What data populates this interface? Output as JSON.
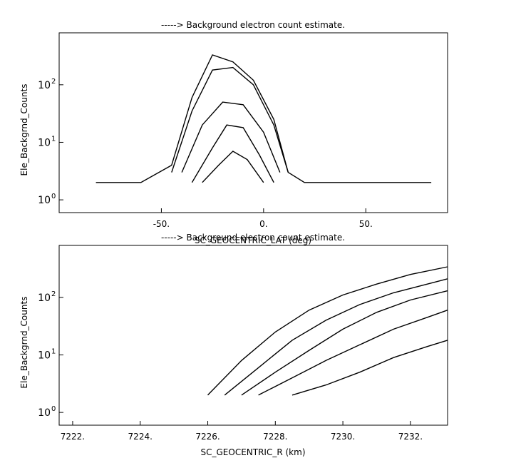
{
  "chart_data": [
    {
      "type": "line",
      "title": "-----> Background electron count estimate.",
      "xlabel": "SC_GEOCENTRIC_LAT (deg)",
      "ylabel": "Ele_Backgrnd_Counts",
      "xlim": [
        -100,
        90
      ],
      "ylim": [
        0.6,
        800
      ],
      "yscale": "log",
      "x_ticks": [
        -50,
        0,
        50
      ],
      "x_tick_labels": [
        "-50.",
        "0.",
        "50."
      ],
      "y_ticks": [
        1,
        10,
        100
      ],
      "y_tick_labels": [
        "10",
        "10",
        "10"
      ],
      "y_tick_exponents": [
        "0",
        "1",
        "2"
      ],
      "grid": false,
      "series": [
        {
          "x": [
            -82,
            -60,
            -45,
            -35,
            -25,
            -15,
            -5,
            5,
            12,
            20,
            40,
            60,
            82
          ],
          "values": [
            2,
            2,
            4,
            60,
            330,
            250,
            120,
            25,
            3,
            2,
            2,
            2,
            2
          ]
        },
        {
          "x": [
            -45,
            -35,
            -25,
            -15,
            -5,
            5,
            12
          ],
          "values": [
            3,
            35,
            180,
            200,
            100,
            20,
            3
          ]
        },
        {
          "x": [
            -40,
            -30,
            -20,
            -10,
            0,
            8
          ],
          "values": [
            3,
            20,
            50,
            45,
            15,
            3
          ]
        },
        {
          "x": [
            -35,
            -25,
            -18,
            -10,
            -2,
            5
          ],
          "values": [
            2,
            8,
            20,
            18,
            6,
            2
          ]
        },
        {
          "x": [
            -30,
            -22,
            -15,
            -8,
            0
          ],
          "values": [
            2,
            4,
            7,
            5,
            2
          ]
        }
      ]
    },
    {
      "type": "line",
      "title": "-----> Background electron count estimate.",
      "xlabel": "SC_GEOCENTRIC_R (km)",
      "ylabel": "Ele_Backgrnd_Counts",
      "xlim": [
        7221.6,
        7233.1
      ],
      "ylim": [
        0.6,
        800
      ],
      "yscale": "log",
      "x_ticks": [
        7222,
        7224,
        7226,
        7228,
        7230,
        7232
      ],
      "x_tick_labels": [
        "7222.",
        "7224.",
        "7226.",
        "7228.",
        "7230.",
        "7232."
      ],
      "y_ticks": [
        1,
        10,
        100
      ],
      "y_tick_labels": [
        "10",
        "10",
        "10"
      ],
      "y_tick_exponents": [
        "0",
        "1",
        "2"
      ],
      "grid": false,
      "series": [
        {
          "x": [
            7226,
            7227,
            7228,
            7229,
            7230,
            7231,
            7232,
            7233.1
          ],
          "values": [
            2,
            8,
            25,
            60,
            110,
            170,
            250,
            340
          ]
        },
        {
          "x": [
            7226.5,
            7227.5,
            7228.5,
            7229.5,
            7230.5,
            7231.5,
            7232.5,
            7233.1
          ],
          "values": [
            2,
            6,
            18,
            40,
            75,
            120,
            170,
            210
          ]
        },
        {
          "x": [
            7227,
            7228,
            7229,
            7230,
            7231,
            7232,
            7233.1
          ],
          "values": [
            2,
            5,
            12,
            28,
            55,
            90,
            130
          ]
        },
        {
          "x": [
            7227.5,
            7228.5,
            7229.5,
            7230.5,
            7231.5,
            7232.5,
            7233.1
          ],
          "values": [
            2,
            4,
            8,
            15,
            28,
            45,
            60
          ]
        },
        {
          "x": [
            7228.5,
            7229.5,
            7230.5,
            7231.5,
            7232.5,
            7233.1
          ],
          "values": [
            2,
            3,
            5,
            9,
            14,
            18
          ]
        }
      ]
    }
  ]
}
